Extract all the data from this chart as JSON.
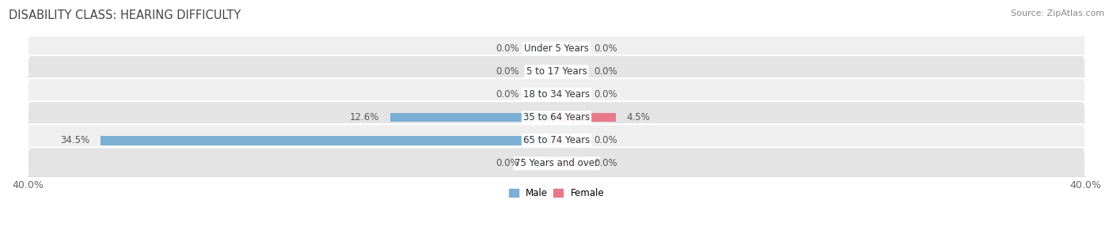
{
  "title": "DISABILITY CLASS: HEARING DIFFICULTY",
  "source": "Source: ZipAtlas.com",
  "categories": [
    "Under 5 Years",
    "5 to 17 Years",
    "18 to 34 Years",
    "35 to 64 Years",
    "65 to 74 Years",
    "75 Years and over"
  ],
  "male_values": [
    0.0,
    0.0,
    0.0,
    12.6,
    34.5,
    0.0
  ],
  "female_values": [
    0.0,
    0.0,
    0.0,
    4.5,
    0.0,
    0.0
  ],
  "male_color": "#7bafd4",
  "female_color": "#e8788a",
  "male_color_light": "#aecde8",
  "female_color_light": "#f2b3bc",
  "row_bg_color_odd": "#efefef",
  "row_bg_color_even": "#e4e4e4",
  "x_min": -40.0,
  "x_max": 40.0,
  "x_tick_labels": [
    "40.0%",
    "40.0%"
  ],
  "title_fontsize": 10.5,
  "label_fontsize": 8.5,
  "tick_fontsize": 9,
  "source_fontsize": 8,
  "stub_size": 2.0
}
